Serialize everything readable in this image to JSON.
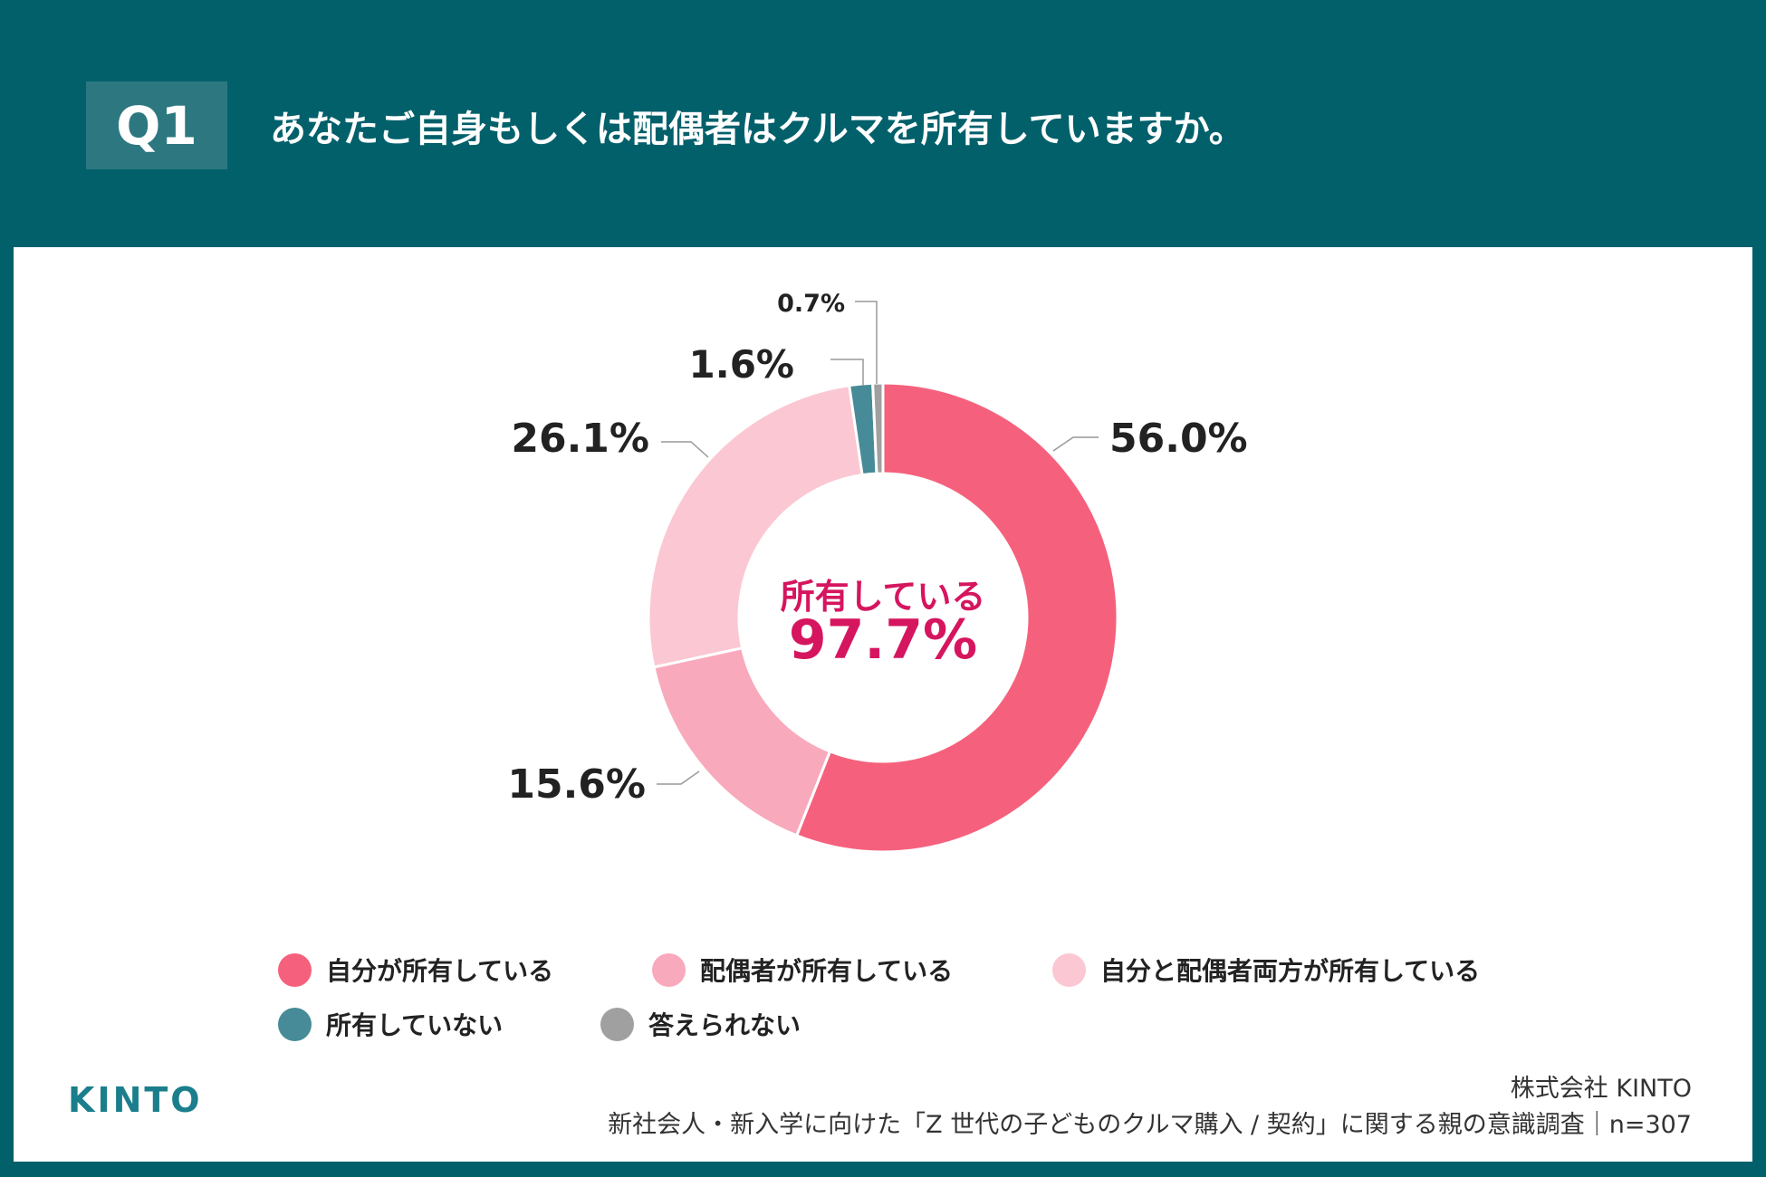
{
  "header": {
    "q_label": "Q1",
    "title": "あなたご自身もしくは配偶者はクルマを所有していますか。"
  },
  "chart_data": {
    "type": "pie",
    "variant": "donut",
    "start": "top, clockwise",
    "center_label": "所有している",
    "center_value": "97.7%",
    "slices": [
      {
        "name": "自分が所有している",
        "value": 56.0,
        "label": "56.0%",
        "color": "#f5617c"
      },
      {
        "name": "配偶者が所有している",
        "value": 15.6,
        "label": "15.6%",
        "color": "#f9a9bc"
      },
      {
        "name": "自分と配偶者両方が所有している",
        "value": 26.1,
        "label": "26.1%",
        "color": "#fbc7d3"
      },
      {
        "name": "所有していない",
        "value": 1.6,
        "label": "1.6%",
        "color": "#468b97"
      },
      {
        "name": "答えられない",
        "value": 0.7,
        "label": "0.7%",
        "color": "#a0a0a0"
      }
    ],
    "legend_placement": "bottom"
  },
  "footer": {
    "logo": "KINTO",
    "company": "株式会社 KINTO",
    "survey": "新社会人・新入学に向けた「Z 世代の子どものクルマ購入 / 契約」に関する親の意識調査｜n=307"
  }
}
